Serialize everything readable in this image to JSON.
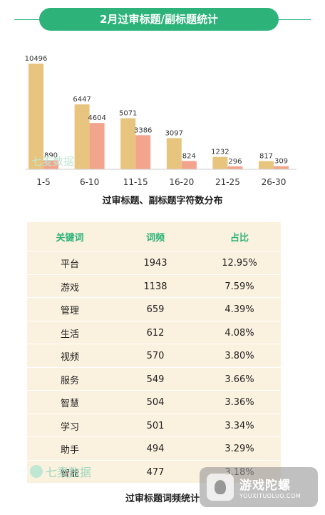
{
  "header": {
    "title": "2月过审标题/副标题统计"
  },
  "chart_data": [
    {
      "type": "bar",
      "xlabel": "过审标题、副标题字符数分布",
      "categories": [
        "1-5",
        "6-10",
        "11-15",
        "16-20",
        "21-25",
        "26-30"
      ],
      "series": [
        {
          "values": [
            10496,
            6447,
            5071,
            3097,
            1232,
            817
          ]
        },
        {
          "values": [
            890,
            4604,
            3386,
            824,
            296,
            309
          ]
        }
      ],
      "ylim": [
        0,
        11000
      ],
      "grid": false,
      "colors": [
        "#e8c57e",
        "#f2a48c"
      ]
    },
    {
      "type": "table",
      "columns": [
        "关键词",
        "词频",
        "占比"
      ],
      "rows": [
        [
          "平台",
          "1943",
          "12.95%"
        ],
        [
          "游戏",
          "1138",
          "7.59%"
        ],
        [
          "管理",
          "659",
          "4.39%"
        ],
        [
          "生活",
          "612",
          "4.08%"
        ],
        [
          "视频",
          "570",
          "3.80%"
        ],
        [
          "服务",
          "549",
          "3.66%"
        ],
        [
          "智慧",
          "504",
          "3.36%"
        ],
        [
          "学习",
          "501",
          "3.34%"
        ],
        [
          "助手",
          "494",
          "3.29%"
        ],
        [
          "智能",
          "477",
          "3.18%"
        ]
      ],
      "title": "过审标题词频统计"
    }
  ],
  "watermark": {
    "text": "七麦数据"
  },
  "corner_logo": {
    "name": "游戏陀螺",
    "url": "YOUXITUOLUO.COM"
  },
  "colors": {
    "accent": "#2db37a",
    "table_bg": "#fbf1df"
  }
}
